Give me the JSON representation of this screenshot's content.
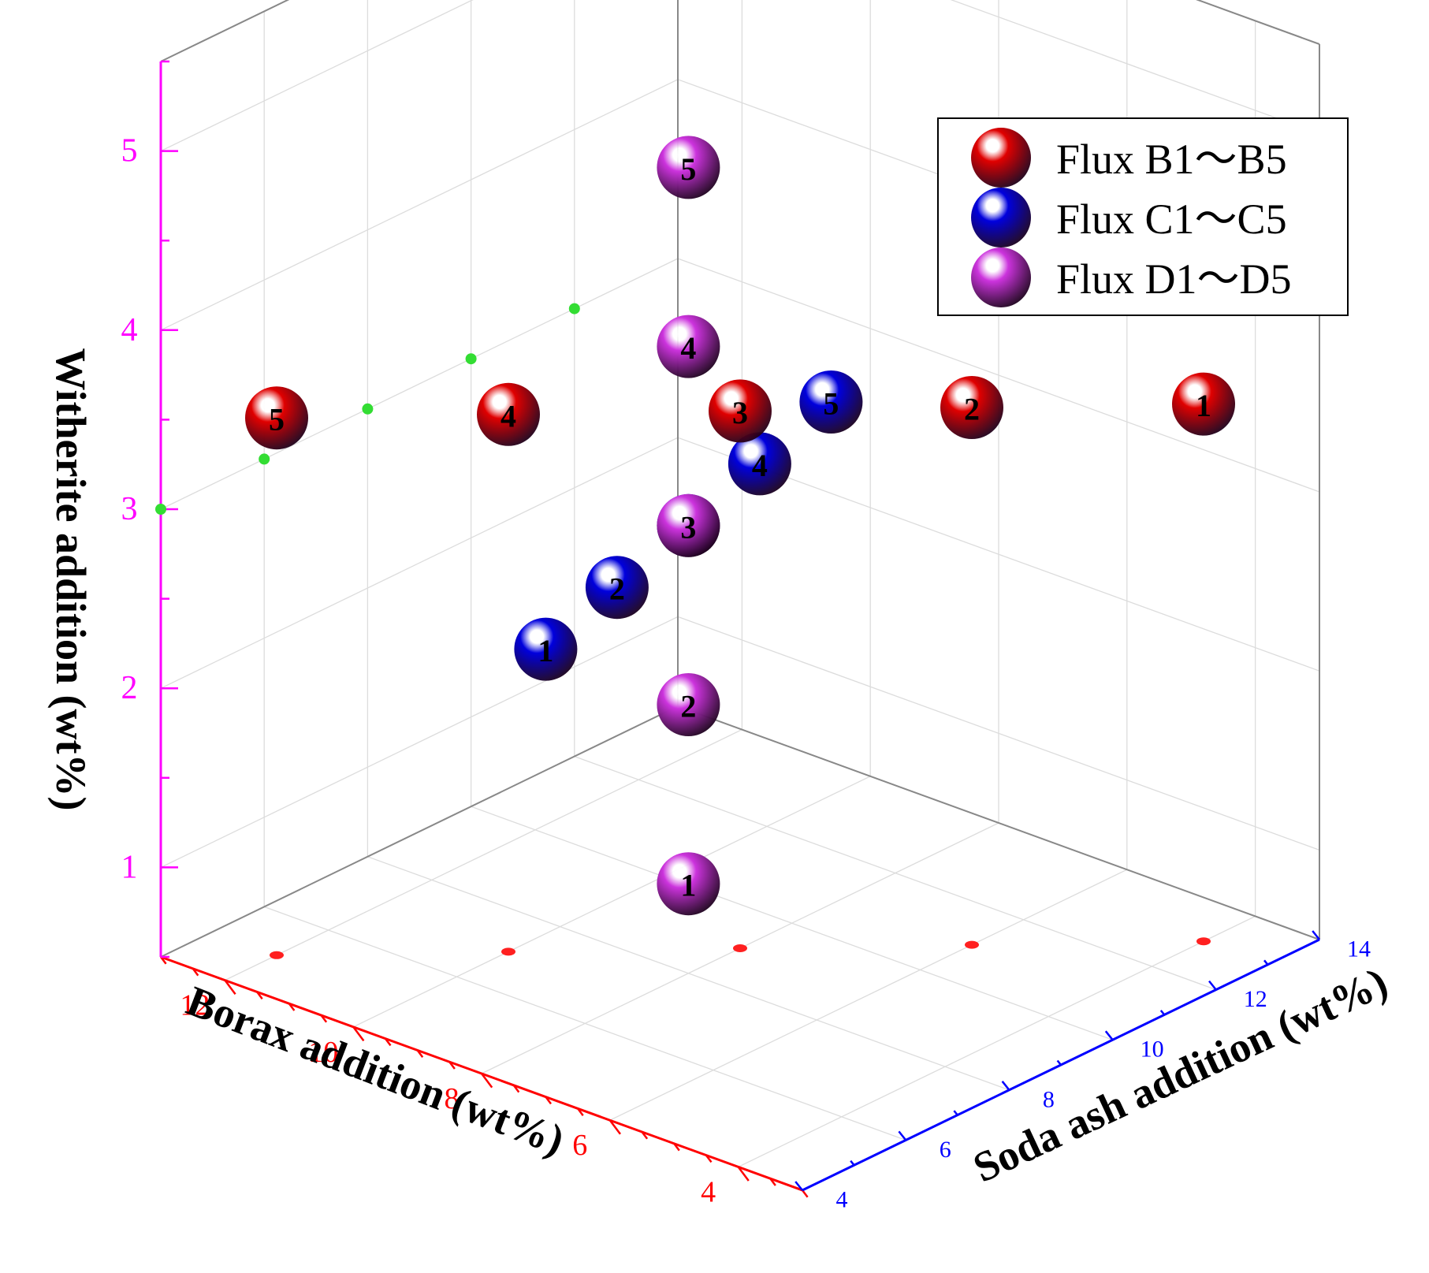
{
  "chart_data": {
    "type": "scatter",
    "projection": "3d",
    "title": "",
    "axes": {
      "x": {
        "label": "Borax addition (wt%)",
        "range": [
          3,
          13
        ],
        "ticks": [
          4,
          6,
          8,
          10,
          12
        ],
        "color": "#ff0000"
      },
      "y": {
        "label": "Soda ash addition (wt%)",
        "range": [
          4,
          14
        ],
        "ticks": [
          4,
          6,
          8,
          10,
          12,
          14
        ],
        "color": "#0000ff"
      },
      "z": {
        "label": "Witherite addition (wt%)",
        "range": [
          0.5,
          5.5
        ],
        "ticks": [
          1,
          2,
          3,
          4,
          5
        ],
        "color": "#ff00ff"
      }
    },
    "grid": true,
    "legend_position": "top-right",
    "series": [
      {
        "name": "Flux B1～B5",
        "color": "#e00000",
        "labels": [
          "1",
          "2",
          "3",
          "4",
          "5"
        ],
        "x": [
          4,
          6,
          8,
          10,
          12
        ],
        "y": [
          13,
          11,
          9,
          7,
          5
        ],
        "z": [
          3.5,
          3.5,
          3.5,
          3.5,
          3.5
        ]
      },
      {
        "name": "Flux C1～C5",
        "color": "#0000dd",
        "labels": [
          "1",
          "2",
          "3",
          "4",
          "5"
        ],
        "x": [
          7,
          7.5,
          8,
          8.5,
          9
        ],
        "y": [
          4,
          6,
          8,
          10,
          12
        ],
        "z": [
          3,
          3,
          3,
          3,
          3
        ]
      },
      {
        "name": "Flux D1～D5",
        "color": "#cc33dd",
        "labels": [
          "1",
          "2",
          "3",
          "4",
          "5"
        ],
        "x": [
          8,
          8,
          8,
          8,
          8
        ],
        "y": [
          8,
          8,
          8,
          8,
          8
        ],
        "z": [
          1,
          2,
          3,
          4,
          5
        ]
      }
    ]
  }
}
